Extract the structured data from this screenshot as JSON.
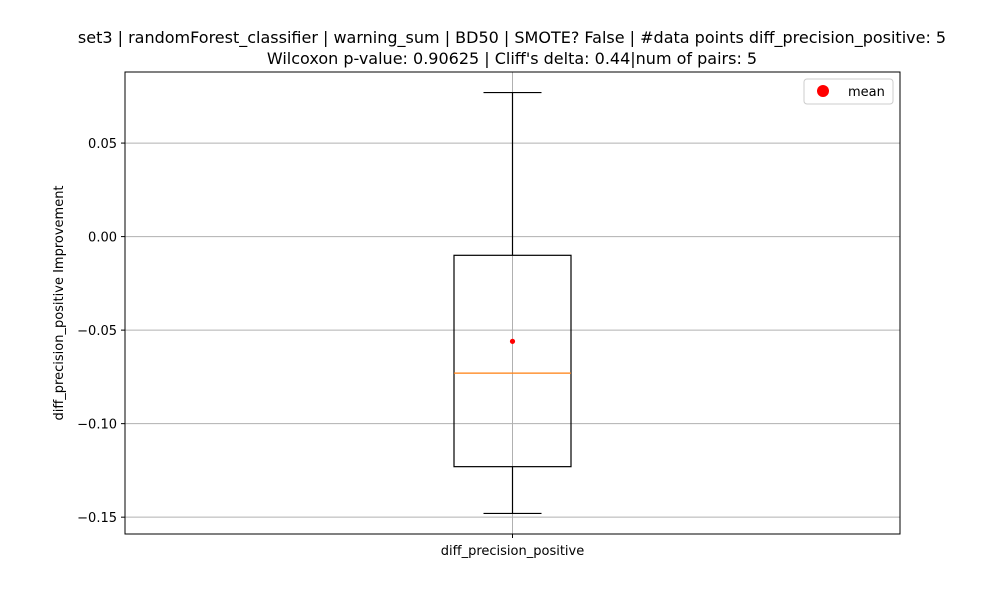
{
  "chart_data": {
    "type": "box",
    "title_line1": "set3 | randomForest_classifier | warning_sum | BD50 | SMOTE? False | #data points diff_precision_positive: 5",
    "title_line2": "Wilcoxon p-value: 0.90625 | Cliff's delta: 0.44|num of pairs: 5",
    "ylabel": "diff_precision_positive Improvement",
    "categories": [
      "diff_precision_positive"
    ],
    "ylim": [
      -0.159,
      0.088
    ],
    "yticks": [
      0.05,
      0.0,
      -0.05,
      -0.1,
      -0.15
    ],
    "ytick_labels": [
      "0.05",
      "0.00",
      "−0.05",
      "−0.10",
      "−0.15"
    ],
    "grid": true,
    "box": {
      "whisker_low": -0.148,
      "q1": -0.123,
      "median": -0.073,
      "q3": -0.01,
      "whisker_high": 0.077,
      "mean": -0.056
    },
    "legend": {
      "position": "top-right",
      "entries": [
        {
          "label": "mean",
          "color": "#ff0000"
        }
      ]
    },
    "colors": {
      "box": "#000000",
      "median": "#ff7f0e",
      "mean": "#ff0000",
      "grid": "#b0b0b0"
    }
  }
}
